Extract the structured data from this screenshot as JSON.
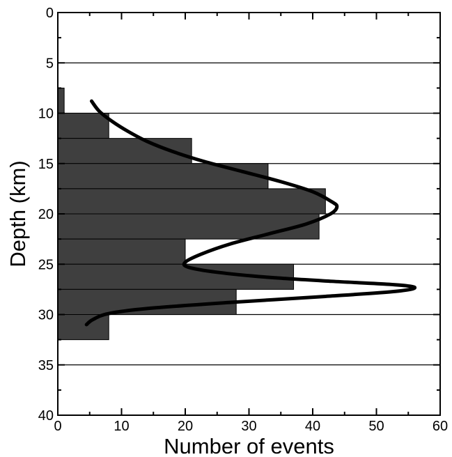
{
  "chart_data": {
    "type": "bar",
    "orientation": "horizontal",
    "xlabel": "Number of events",
    "ylabel": "Depth (km)",
    "xlim": [
      0,
      60
    ],
    "ylim": [
      0,
      40
    ],
    "y_inverted": true,
    "x_ticks": [
      0,
      10,
      20,
      30,
      40,
      50,
      60
    ],
    "y_ticks": [
      0,
      5,
      10,
      15,
      20,
      25,
      30,
      35,
      40
    ],
    "grid": "horizontal lines at 5 km intervals",
    "bin_width_km": 2.5,
    "bins": [
      {
        "depth_from": 7.5,
        "depth_to": 10.0,
        "count": 1
      },
      {
        "depth_from": 10.0,
        "depth_to": 12.5,
        "count": 8
      },
      {
        "depth_from": 12.5,
        "depth_to": 15.0,
        "count": 21
      },
      {
        "depth_from": 15.0,
        "depth_to": 17.5,
        "count": 33
      },
      {
        "depth_from": 17.5,
        "depth_to": 20.0,
        "count": 42
      },
      {
        "depth_from": 20.0,
        "depth_to": 22.5,
        "count": 41
      },
      {
        "depth_from": 22.5,
        "depth_to": 25.0,
        "count": 20
      },
      {
        "depth_from": 25.0,
        "depth_to": 27.5,
        "count": 37
      },
      {
        "depth_from": 27.5,
        "depth_to": 30.0,
        "count": 28
      },
      {
        "depth_from": 30.0,
        "depth_to": 32.5,
        "count": 8
      }
    ],
    "curve": {
      "type": "line",
      "points": [
        {
          "x": 5.3,
          "y": 8.8
        },
        {
          "x": 6.5,
          "y": 9.8
        },
        {
          "x": 8.5,
          "y": 10.8
        },
        {
          "x": 11.0,
          "y": 11.8
        },
        {
          "x": 14.0,
          "y": 12.8
        },
        {
          "x": 18.0,
          "y": 13.8
        },
        {
          "x": 23.0,
          "y": 14.8
        },
        {
          "x": 29.0,
          "y": 15.8
        },
        {
          "x": 35.0,
          "y": 16.8
        },
        {
          "x": 40.0,
          "y": 17.8
        },
        {
          "x": 43.0,
          "y": 18.8
        },
        {
          "x": 43.8,
          "y": 19.3
        },
        {
          "x": 42.8,
          "y": 20.0
        },
        {
          "x": 39.0,
          "y": 21.0
        },
        {
          "x": 33.0,
          "y": 22.0
        },
        {
          "x": 27.0,
          "y": 23.0
        },
        {
          "x": 22.5,
          "y": 24.0
        },
        {
          "x": 20.0,
          "y": 24.8
        },
        {
          "x": 20.5,
          "y": 25.3
        },
        {
          "x": 25.0,
          "y": 25.8
        },
        {
          "x": 33.0,
          "y": 26.3
        },
        {
          "x": 43.0,
          "y": 26.7
        },
        {
          "x": 52.0,
          "y": 27.0
        },
        {
          "x": 56.0,
          "y": 27.3
        },
        {
          "x": 53.0,
          "y": 27.7
        },
        {
          "x": 42.0,
          "y": 28.2
        },
        {
          "x": 27.0,
          "y": 28.8
        },
        {
          "x": 14.0,
          "y": 29.4
        },
        {
          "x": 8.0,
          "y": 29.9
        },
        {
          "x": 5.5,
          "y": 30.5
        },
        {
          "x": 4.5,
          "y": 31.0
        }
      ]
    }
  }
}
